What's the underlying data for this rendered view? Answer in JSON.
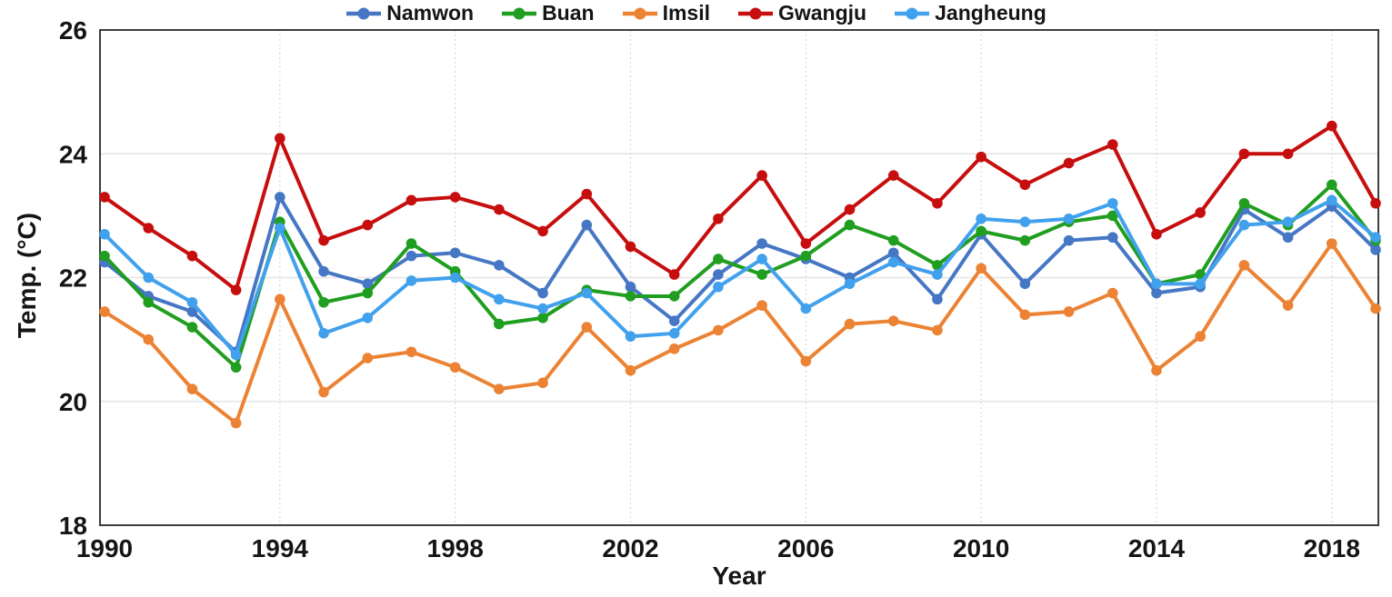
{
  "chart_data": {
    "type": "line",
    "title": "",
    "xlabel": "Year",
    "ylabel": "Temp. (°C)",
    "x": [
      1990,
      1991,
      1992,
      1993,
      1994,
      1995,
      1996,
      1997,
      1998,
      1999,
      2000,
      2001,
      2002,
      2003,
      2004,
      2005,
      2006,
      2007,
      2008,
      2009,
      2010,
      2011,
      2012,
      2013,
      2014,
      2015,
      2016,
      2017,
      2018,
      2019
    ],
    "xticks": [
      1990,
      1994,
      1998,
      2002,
      2006,
      2010,
      2014,
      2018
    ],
    "yticks": [
      18,
      20,
      22,
      24,
      26
    ],
    "xlim": [
      1990,
      2019
    ],
    "ylim": [
      18,
      26
    ],
    "grid": {
      "horizontal": "solid",
      "vertical": "dotted"
    },
    "legend_position": "top-center",
    "axis_color": "#3d3d3d",
    "h_grid_color": "#e4e4e4",
    "v_grid_color": "#d9d9d9",
    "tick_label_color": "#151515",
    "series": [
      {
        "name": "Namwon",
        "color": "#4677C5",
        "values": [
          22.25,
          21.7,
          21.45,
          20.8,
          23.3,
          22.1,
          21.9,
          22.35,
          22.4,
          22.2,
          21.75,
          22.85,
          21.85,
          21.3,
          22.05,
          22.55,
          22.3,
          22.0,
          22.4,
          21.65,
          22.7,
          21.9,
          22.6,
          22.65,
          21.75,
          21.85,
          23.1,
          22.65,
          23.15,
          22.45
        ]
      },
      {
        "name": "Buan",
        "color": "#1F9E1F",
        "values": [
          22.35,
          21.6,
          21.2,
          20.55,
          22.9,
          21.6,
          21.75,
          22.55,
          22.1,
          21.25,
          21.35,
          21.8,
          21.7,
          21.7,
          22.3,
          22.05,
          22.35,
          22.85,
          22.6,
          22.2,
          22.75,
          22.6,
          22.9,
          23.0,
          21.9,
          22.05,
          23.2,
          22.85,
          23.5,
          22.6
        ]
      },
      {
        "name": "Imsil",
        "color": "#EC8233",
        "values": [
          21.45,
          21.0,
          20.2,
          19.65,
          21.65,
          20.15,
          20.7,
          20.8,
          20.55,
          20.2,
          20.3,
          21.2,
          20.5,
          20.85,
          21.15,
          21.55,
          20.65,
          21.25,
          21.3,
          21.15,
          22.15,
          21.4,
          21.45,
          21.75,
          20.5,
          21.05,
          22.2,
          21.55,
          22.55,
          21.5
        ]
      },
      {
        "name": "Gwangju",
        "color": "#C70E0E",
        "values": [
          23.3,
          22.8,
          22.35,
          21.8,
          24.25,
          22.6,
          22.85,
          23.25,
          23.3,
          23.1,
          22.75,
          23.35,
          22.5,
          22.05,
          22.95,
          23.65,
          22.55,
          23.1,
          23.65,
          23.2,
          23.95,
          23.5,
          23.85,
          24.15,
          22.7,
          23.05,
          24.0,
          24.0,
          24.45,
          23.2
        ]
      },
      {
        "name": "Jangheung",
        "color": "#41A1EC",
        "values": [
          22.7,
          22.0,
          21.6,
          20.75,
          22.8,
          21.1,
          21.35,
          21.95,
          22.0,
          21.65,
          21.5,
          21.75,
          21.05,
          21.1,
          21.85,
          22.3,
          21.5,
          21.9,
          22.25,
          22.05,
          22.95,
          22.9,
          22.95,
          23.2,
          21.9,
          21.9,
          22.85,
          22.9,
          23.25,
          22.65
        ]
      }
    ]
  }
}
